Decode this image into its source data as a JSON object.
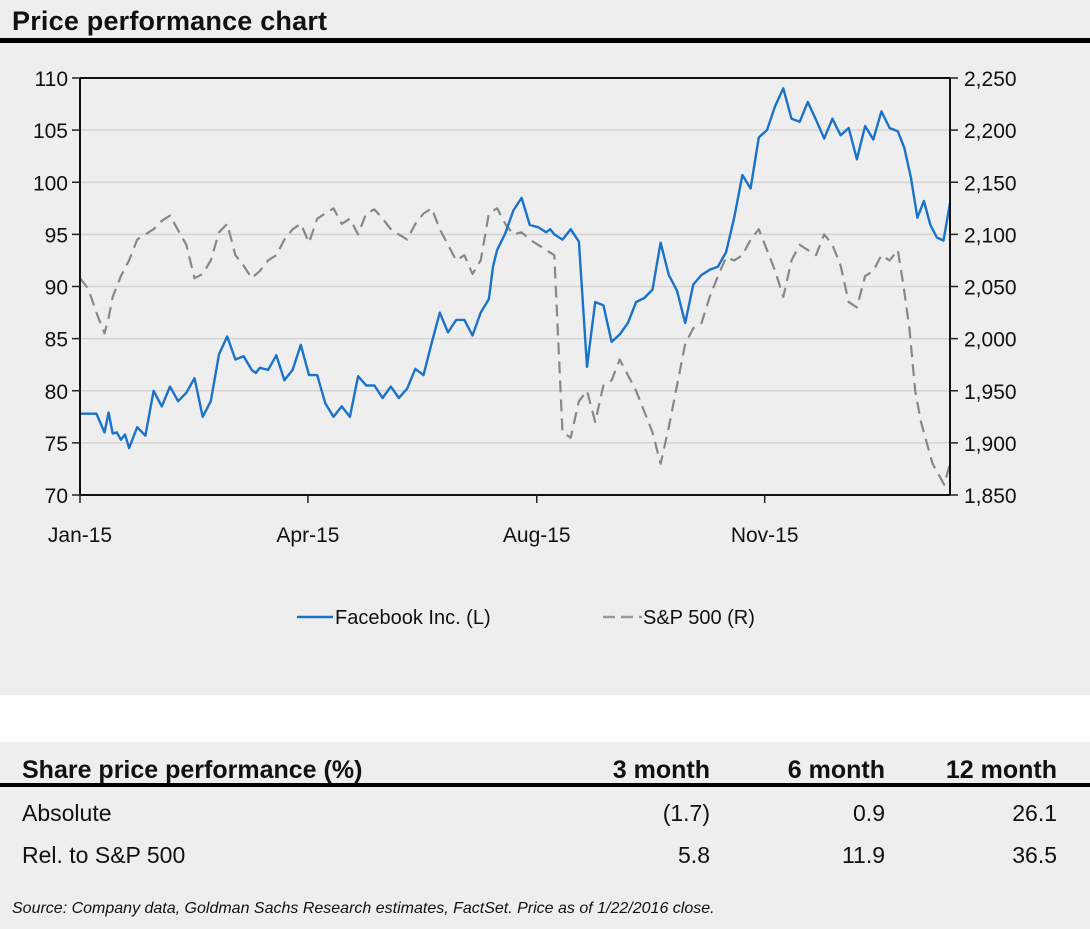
{
  "title": "Price performance chart",
  "chart_data": {
    "type": "line",
    "title": "Price performance chart",
    "xlabel": "",
    "ylabel": "",
    "x_ticks": [
      "Jan-15",
      "Apr-15",
      "Aug-15",
      "Nov-15"
    ],
    "x_range": [
      "2015-01-02",
      "2016-01-22"
    ],
    "y_left": {
      "ticks": [
        "110",
        "105",
        "100",
        "95",
        "90",
        "85",
        "80",
        "75",
        "70"
      ],
      "ylim": [
        70,
        110
      ]
    },
    "y_right": {
      "ticks": [
        "2,250",
        "2,200",
        "2,150",
        "2,100",
        "2,050",
        "2,000",
        "1,950",
        "1,900",
        "1,850"
      ],
      "ylim": [
        1850,
        2250
      ]
    },
    "grid": true,
    "legend_position": "bottom-center",
    "series": [
      {
        "name": "Facebook Inc. (L)",
        "axis": "left",
        "style": "solid",
        "color": "#1a73c8",
        "x_frac": [
          0.0,
          0.02,
          0.03,
          0.035,
          0.04,
          0.045,
          0.05,
          0.055,
          0.06,
          0.07,
          0.08,
          0.09,
          0.1,
          0.11,
          0.12,
          0.13,
          0.14,
          0.15,
          0.16,
          0.17,
          0.18,
          0.19,
          0.2,
          0.21,
          0.215,
          0.22,
          0.23,
          0.24,
          0.25,
          0.26,
          0.27,
          0.28,
          0.29,
          0.3,
          0.31,
          0.32,
          0.33,
          0.34,
          0.35,
          0.36,
          0.37,
          0.38,
          0.39,
          0.4,
          0.41,
          0.42,
          0.43,
          0.44,
          0.45,
          0.46,
          0.47,
          0.48,
          0.49,
          0.5,
          0.505,
          0.51,
          0.52,
          0.53,
          0.54,
          0.55,
          0.56,
          0.57,
          0.575,
          0.58,
          0.59,
          0.6,
          0.61,
          0.62,
          0.63,
          0.64,
          0.65,
          0.66,
          0.67,
          0.68,
          0.69,
          0.7,
          0.71,
          0.72,
          0.73,
          0.74,
          0.75,
          0.76,
          0.77,
          0.78,
          0.79,
          0.8,
          0.81,
          0.82,
          0.83,
          0.84,
          0.85,
          0.86,
          0.87,
          0.88,
          0.89,
          0.9,
          0.91,
          0.92,
          0.93,
          0.94,
          0.95,
          0.96,
          0.97,
          0.98,
          0.99,
          1.0
        ],
        "values": [
          77.8,
          77.8,
          76.0,
          77.9,
          75.9,
          76.0,
          75.3,
          75.8,
          74.5,
          76.5,
          75.7,
          80.0,
          78.5,
          80.4,
          79.0,
          79.8,
          81.2,
          77.5,
          79.0,
          83.5,
          85.2,
          83.0,
          83.3,
          82.0,
          81.7,
          82.2,
          82.0,
          83.4,
          81.0,
          82.0,
          84.4,
          81.5,
          81.5,
          78.8,
          77.5,
          78.5,
          77.5,
          81.4,
          80.5,
          80.5,
          79.3,
          80.4,
          79.3,
          80.2,
          82.1,
          81.5,
          84.6,
          87.5,
          85.6,
          86.8,
          86.8,
          85.3,
          87.5,
          88.8,
          91.9,
          93.5,
          95.1,
          97.3,
          98.5,
          95.9,
          95.7,
          95.2,
          95.5,
          95.0,
          94.5,
          95.5,
          94.3,
          82.3,
          88.5,
          88.2,
          84.7,
          85.4,
          86.5,
          88.5,
          88.9,
          89.7,
          94.2,
          91.1,
          89.6,
          86.5,
          90.2,
          91.1,
          91.6,
          91.9,
          93.3,
          96.6,
          100.7,
          99.4,
          104.3,
          105.0,
          107.3,
          109.0,
          106.1,
          105.8,
          107.7,
          106.0,
          104.2,
          106.1,
          104.5,
          105.2,
          102.2,
          105.4,
          104.1,
          106.8,
          105.2,
          104.9
        ],
        "tail_values": [
          103.3,
          100.5,
          96.6,
          98.2,
          95.9,
          94.7,
          94.4,
          98.0
        ]
      },
      {
        "name": "S&P 500 (R)",
        "axis": "right",
        "style": "dashed",
        "color": "#888888",
        "x_frac": [
          0.0,
          0.01,
          0.02,
          0.03,
          0.035,
          0.04,
          0.05,
          0.06,
          0.07,
          0.08,
          0.09,
          0.1,
          0.11,
          0.12,
          0.13,
          0.14,
          0.15,
          0.16,
          0.17,
          0.18,
          0.19,
          0.2,
          0.21,
          0.22,
          0.23,
          0.24,
          0.25,
          0.26,
          0.27,
          0.28,
          0.29,
          0.3,
          0.31,
          0.32,
          0.33,
          0.34,
          0.35,
          0.36,
          0.37,
          0.38,
          0.39,
          0.4,
          0.41,
          0.42,
          0.43,
          0.44,
          0.45,
          0.46,
          0.47,
          0.48,
          0.49,
          0.5,
          0.51,
          0.52,
          0.53,
          0.54,
          0.55,
          0.56,
          0.57,
          0.58,
          0.59,
          0.6,
          0.61,
          0.62,
          0.63,
          0.64,
          0.65,
          0.66,
          0.67,
          0.68,
          0.69,
          0.7,
          0.71,
          0.72,
          0.73,
          0.74,
          0.75,
          0.76,
          0.77,
          0.78,
          0.79,
          0.8,
          0.81,
          0.82,
          0.83,
          0.84,
          0.85,
          0.86,
          0.87,
          0.88,
          0.89,
          0.9,
          0.91,
          0.92,
          0.93,
          0.94,
          0.95,
          0.96,
          0.97,
          0.98,
          0.99,
          1.0
        ],
        "values": [
          2058,
          2048,
          2025,
          2005,
          2020,
          2040,
          2060,
          2075,
          2095,
          2100,
          2105,
          2113,
          2118,
          2104,
          2090,
          2058,
          2062,
          2075,
          2102,
          2110,
          2080,
          2070,
          2058,
          2065,
          2075,
          2080,
          2095,
          2105,
          2110,
          2092,
          2115,
          2120,
          2125,
          2110,
          2115,
          2100,
          2120,
          2124,
          2115,
          2105,
          2100,
          2095,
          2110,
          2120,
          2125,
          2105,
          2090,
          2075,
          2080,
          2062,
          2075,
          2120,
          2125,
          2110,
          2100,
          2102,
          2095,
          2090,
          2085,
          2080,
          1910,
          1905,
          1940,
          1950,
          1920,
          1955,
          1960,
          1980,
          1965,
          1950,
          1930,
          1910,
          1880,
          1915,
          1955,
          1995,
          2010,
          2015,
          2040,
          2060,
          2078,
          2075,
          2080,
          2095,
          2105,
          2085,
          2065,
          2040,
          2075,
          2090,
          2085,
          2080,
          2100,
          2090,
          2070,
          2035,
          2030,
          2060,
          2065,
          2080,
          2075,
          2085
        ],
        "tail_values": [
          2050,
          2010,
          1950,
          1920,
          1900,
          1880,
          1870,
          1860,
          1880
        ]
      }
    ]
  },
  "legend": {
    "facebook": "Facebook Inc. (L)",
    "sp500": "S&P 500 (R)"
  },
  "table": {
    "header": "Share price performance (%)",
    "columns": [
      "3 month",
      "6 month",
      "12 month"
    ],
    "rows": [
      {
        "label": "Absolute",
        "values": [
          "(1.7)",
          "0.9",
          "26.1"
        ]
      },
      {
        "label": "Rel. to S&P 500",
        "values": [
          "5.8",
          "11.9",
          "36.5"
        ]
      }
    ]
  },
  "source": "Source: Company data, Goldman Sachs Research estimates, FactSet. Price as of 1/22/2016 close."
}
